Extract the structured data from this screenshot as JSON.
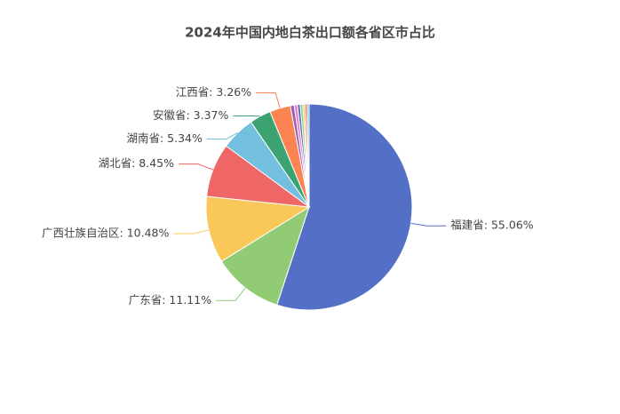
{
  "chart_data": {
    "type": "pie",
    "title": "2024年中国内地白茶出口额各省区市占比",
    "values": [
      55.06,
      11.11,
      10.48,
      8.45,
      5.34,
      3.37,
      3.26,
      0.6,
      0.5,
      0.45,
      0.4,
      0.35,
      0.33,
      0.3
    ],
    "value_labels": [
      "福建省: 55.06%",
      "广东省: 11.11%",
      "广西壮族自治区: 10.48%",
      "湖北省: 8.45%",
      "湖南省: 5.34%",
      "安徽省: 3.37%",
      "江西省: 3.26%",
      null,
      null,
      null,
      null,
      null,
      null,
      null
    ],
    "colors": [
      "#5470c6",
      "#91cc75",
      "#fac858",
      "#ee6666",
      "#73c0de",
      "#3ba272",
      "#fc8452",
      "#9a60b4",
      "#ea7ccc",
      "#5470c6",
      "#91cc75",
      "#fac858",
      "#ee6666",
      "#73c0de"
    ]
  }
}
